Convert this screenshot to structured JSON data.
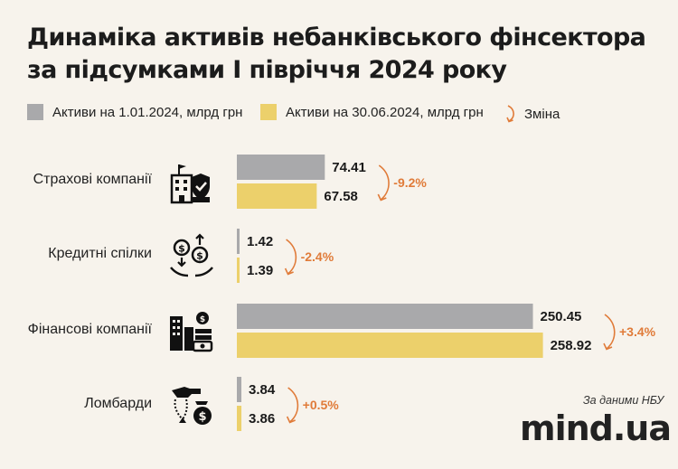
{
  "title_line1": "Динаміка активів небанківського фінсектора",
  "title_line2": "за підсумками І півріччя 2024 року",
  "legend": {
    "series1": "Активи на 1.01.2024, млрд грн",
    "series2": "Активи на 30.06.2024, млрд грн",
    "change": "Зміна"
  },
  "colors": {
    "series1": "#a9a9ab",
    "series2": "#ecd06b",
    "change": "#e07b39",
    "background": "#f7f3ec"
  },
  "source": "За даними НБУ",
  "logo": "mind.ua",
  "icons": [
    "insurance-building-icon",
    "credit-union-money-hands-icon",
    "financial-company-buildings-icon",
    "pawnshop-jewelry-icon"
  ],
  "chart_data": {
    "type": "bar",
    "orientation": "horizontal",
    "categories": [
      "Страхові компанії",
      "Кредитні спілки",
      "Фінансові компанії",
      "Ломбарди"
    ],
    "series": [
      {
        "name": "Активи на 1.01.2024, млрд грн",
        "values": [
          74.41,
          1.42,
          250.45,
          3.84
        ],
        "labels": [
          "74.41",
          "1.42",
          "250.45",
          "3.84"
        ]
      },
      {
        "name": "Активи на 30.06.2024, млрд грн",
        "values": [
          67.58,
          1.39,
          258.92,
          3.86
        ],
        "labels": [
          "67.58",
          "1.39",
          "258.92",
          "3.86"
        ]
      }
    ],
    "change_labels": [
      "-9.2%",
      "-2.4%",
      "+3.4%",
      "+0.5%"
    ],
    "change_values": [
      -9.2,
      -2.4,
      3.4,
      0.5
    ],
    "xlim": [
      0,
      260
    ],
    "grid": false,
    "legend_position": "top"
  }
}
